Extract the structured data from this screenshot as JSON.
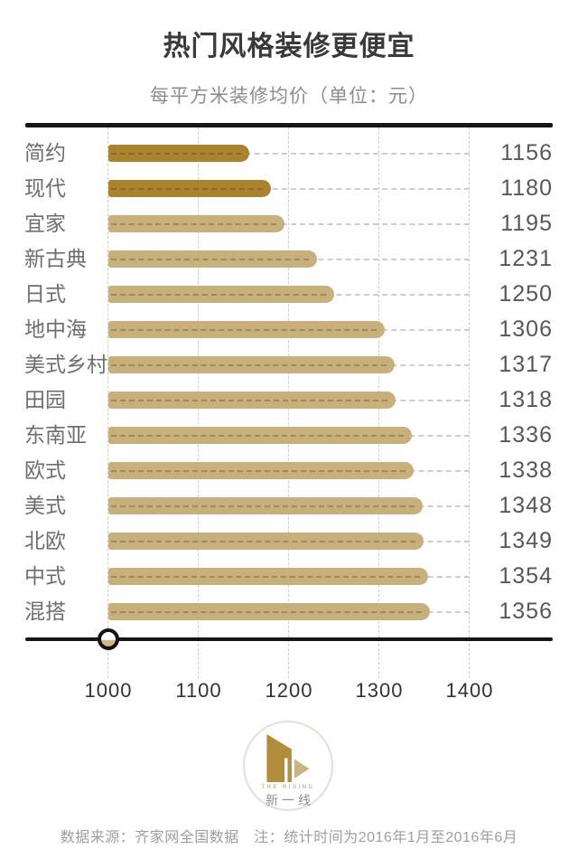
{
  "header": {
    "title": "热门风格装修更便宜",
    "subtitle": "每平方米装修均价（单位：元）"
  },
  "chart_data": {
    "type": "bar",
    "orientation": "horizontal",
    "title": "热门风格装修更便宜",
    "subtitle": "每平方米装修均价（单位：元）",
    "categories": [
      "简约",
      "现代",
      "宜家",
      "新古典",
      "日式",
      "地中海",
      "美式乡村",
      "田园",
      "东南亚",
      "欧式",
      "美式",
      "北欧",
      "中式",
      "混搭"
    ],
    "values": [
      1156,
      1180,
      1195,
      1231,
      1250,
      1306,
      1317,
      1318,
      1336,
      1338,
      1348,
      1349,
      1354,
      1356
    ],
    "x_ticks": [
      1000,
      1100,
      1200,
      1300,
      1400
    ],
    "x_min": 1000,
    "x_max": 1400,
    "grid": true,
    "value_labels": true,
    "highlight_indices": [
      0,
      1
    ],
    "colors": {
      "highlight_bar": "#a9832f",
      "bar": "#c7b07b",
      "grid": "#cccccc",
      "axis": "#161616"
    }
  },
  "logo": {
    "name_en": "THE RISING",
    "name_zh": "新一线"
  },
  "footer": {
    "source": "数据来源：齐家网全国数据　注：统计时间为2016年1月至2016年6月"
  }
}
